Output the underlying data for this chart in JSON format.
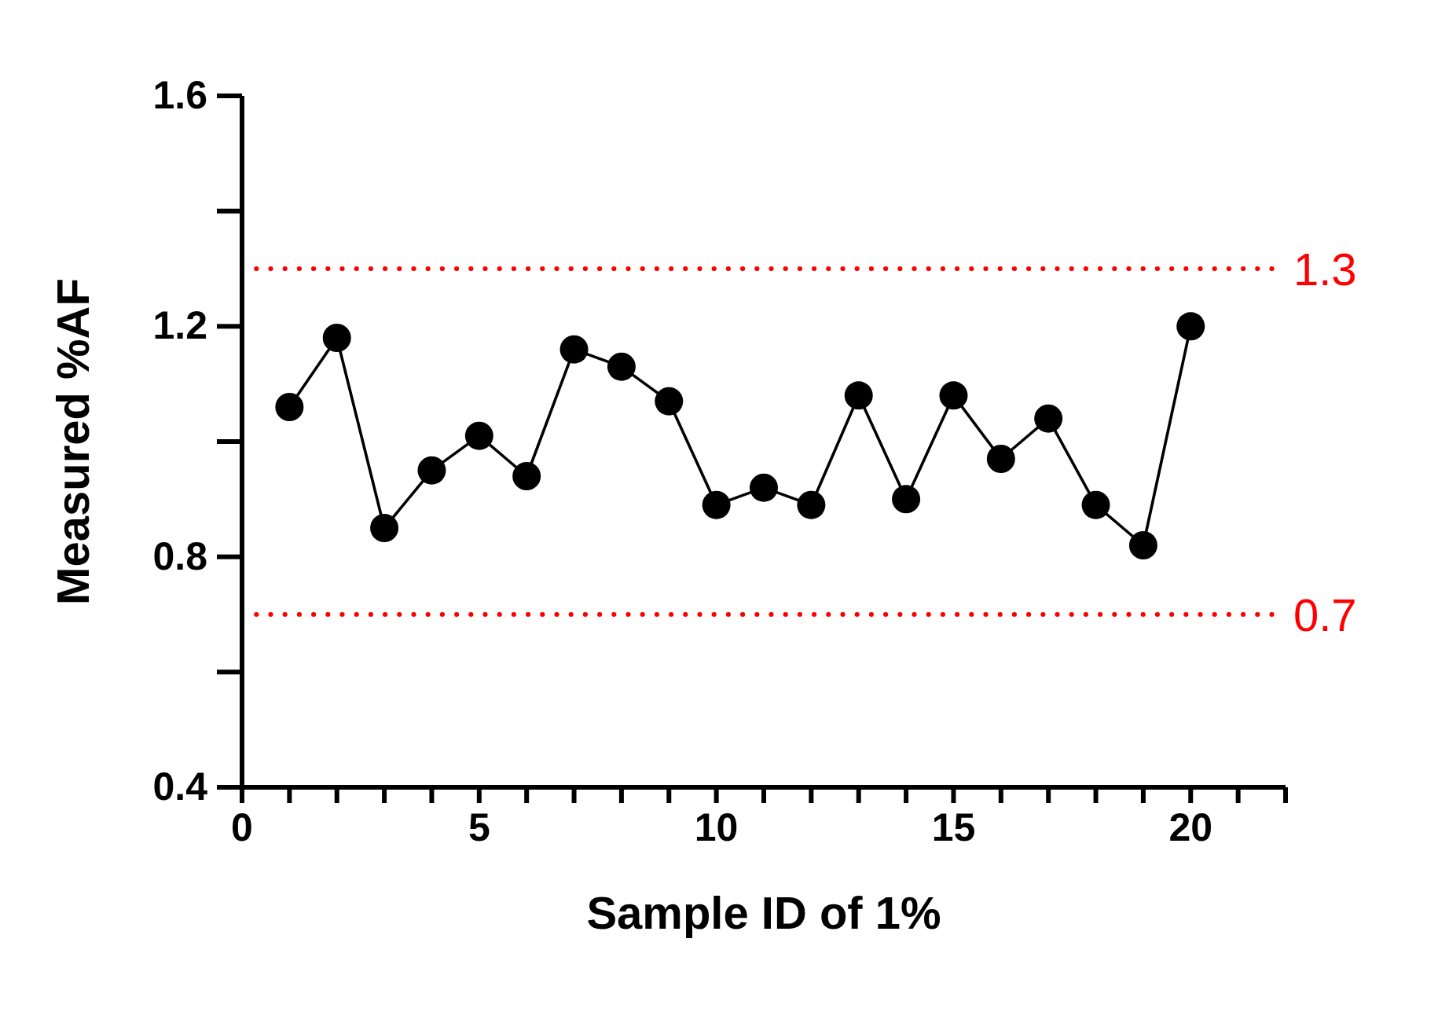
{
  "chart_data": {
    "type": "line",
    "xlabel": "Sample ID of 1%",
    "ylabel": "Measured %AF",
    "x": [
      1,
      2,
      3,
      4,
      5,
      6,
      7,
      8,
      9,
      10,
      11,
      12,
      13,
      14,
      15,
      16,
      17,
      18,
      19,
      20
    ],
    "series": [
      {
        "color": "#000000",
        "values": [
          1.06,
          1.18,
          0.85,
          0.95,
          1.01,
          0.94,
          1.16,
          1.13,
          1.07,
          0.89,
          0.92,
          0.89,
          1.08,
          0.9,
          1.08,
          0.97,
          1.04,
          0.89,
          0.82,
          1.2
        ]
      }
    ],
    "xlim": [
      0,
      22
    ],
    "xticks": [
      0,
      {
        "value": 1,
        "label": null
      },
      {
        "value": 2,
        "label": null
      },
      {
        "value": 3,
        "label": null
      },
      {
        "value": 4,
        "label": null
      },
      5,
      {
        "value": 6,
        "label": null
      },
      {
        "value": 7,
        "label": null
      },
      {
        "value": 8,
        "label": null
      },
      {
        "value": 9,
        "label": null
      },
      10,
      {
        "value": 11,
        "label": null
      },
      {
        "value": 12,
        "label": null
      },
      {
        "value": 13,
        "label": null
      },
      {
        "value": 14,
        "label": null
      },
      15,
      {
        "value": 16,
        "label": null
      },
      {
        "value": 17,
        "label": null
      },
      {
        "value": 18,
        "label": null
      },
      {
        "value": 19,
        "label": null
      },
      20,
      {
        "value": 21,
        "label": null
      },
      {
        "value": 22,
        "label": null
      }
    ],
    "ylim": [
      0.4,
      1.6
    ],
    "yticks": [
      {
        "value": 0.4,
        "label": "0.4"
      },
      {
        "value": 0.6,
        "label": null
      },
      {
        "value": 0.8,
        "label": "0.8"
      },
      {
        "value": 1.0,
        "label": null
      },
      {
        "value": 1.2,
        "label": "1.2"
      },
      {
        "value": 1.4,
        "label": null
      },
      {
        "value": 1.6,
        "label": "1.6"
      }
    ],
    "ref_lines": [
      {
        "axis": "y",
        "value": 1.3,
        "label": "1.3",
        "color": "#ff0000",
        "line_style": "dotted"
      },
      {
        "axis": "y",
        "value": 0.7,
        "label": "0.7",
        "color": "#ff0000",
        "line_style": "dotted"
      }
    ],
    "marker": "circle",
    "line_style": "solid",
    "grid": false,
    "legend": false
  }
}
